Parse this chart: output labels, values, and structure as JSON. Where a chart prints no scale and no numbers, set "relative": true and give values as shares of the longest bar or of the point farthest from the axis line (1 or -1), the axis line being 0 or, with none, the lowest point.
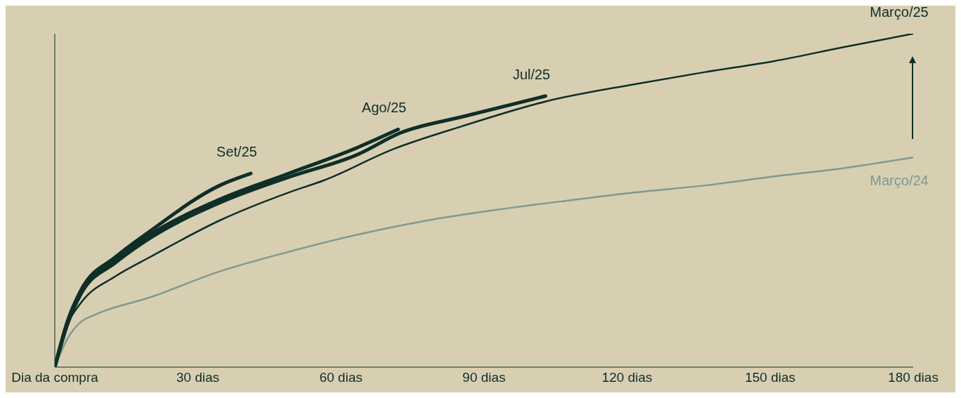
{
  "chart_data": {
    "type": "line",
    "relative": true,
    "xticks": [
      {
        "value": 0,
        "label": "Dia da compra"
      },
      {
        "value": 30,
        "label": "30 dias"
      },
      {
        "value": 60,
        "label": "60 dias"
      },
      {
        "value": 90,
        "label": "90 dias"
      },
      {
        "value": 120,
        "label": "120 dias"
      },
      {
        "value": 150,
        "label": "150 dias"
      },
      {
        "value": 180,
        "label": "180 dias"
      }
    ],
    "xlim": [
      0,
      180
    ],
    "grid": false,
    "legend": false,
    "marker": "none",
    "series": [
      {
        "name": "Março/25",
        "color": "#0f2e28",
        "x": [
          0,
          2.6,
          5.5,
          12.8,
          20.1,
          34.6,
          49.1,
          56.4,
          71,
          85.5,
          103,
          121.8,
          136.4,
          150.9,
          165.5,
          180
        ],
        "values": [
          0,
          0.126,
          0.193,
          0.273,
          0.331,
          0.44,
          0.524,
          0.56,
          0.654,
          0.723,
          0.797,
          0.849,
          0.885,
          0.918,
          0.96,
          1
        ]
      },
      {
        "name": "Março/24",
        "color": "#7f9990",
        "x": [
          0,
          2.6,
          5.5,
          8.4,
          20.1,
          34.6,
          49.1,
          63.7,
          78.2,
          92.8,
          107.3,
          121.8,
          136.4,
          150.9,
          165.5,
          180
        ],
        "values": [
          0,
          0.084,
          0.136,
          0.157,
          0.21,
          0.287,
          0.346,
          0.398,
          0.44,
          0.472,
          0.499,
          0.524,
          0.545,
          0.572,
          0.597,
          0.629
        ]
      },
      {
        "name": "Jul/25",
        "color": "#0f2e28",
        "x": [
          0,
          2.6,
          5.5,
          12.8,
          20.1,
          34.6,
          49.1,
          63.7,
          72.4,
          85.5,
          102.9
        ],
        "values": [
          0,
          0.126,
          0.22,
          0.314,
          0.388,
          0.493,
          0.57,
          0.639,
          0.702,
          0.751,
          0.813
        ]
      },
      {
        "name": "Ago/25",
        "color": "#0f2e28",
        "x": [
          0,
          2.6,
          5.5,
          12.8,
          20.1,
          34.6,
          49.1,
          63.7,
          72
        ],
        "values": [
          0,
          0.13,
          0.224,
          0.323,
          0.398,
          0.503,
          0.581,
          0.66,
          0.713
        ]
      },
      {
        "name": "Set/25",
        "color": "#0f2e28",
        "x": [
          0,
          2.6,
          5.5,
          12.8,
          20.1,
          34.6,
          41.1
        ],
        "values": [
          0,
          0.135,
          0.231,
          0.331,
          0.409,
          0.545,
          0.581
        ]
      }
    ]
  }
}
